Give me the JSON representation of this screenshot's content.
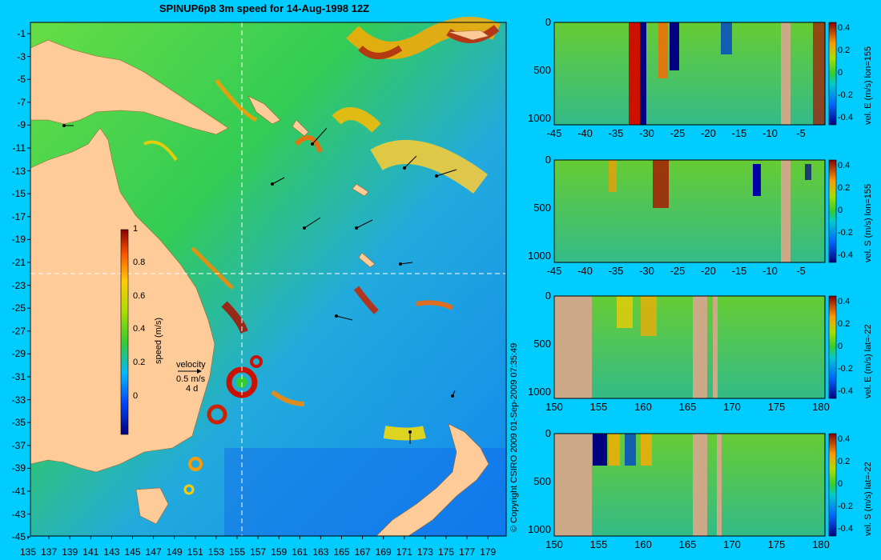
{
  "title": "SPINUP6p8 3m speed for 14-Aug-1998 12Z",
  "copyright": "© Copyright CSIRO 2009   01-Sep-2009 07:35:49",
  "map": {
    "lon_ticks": [
      "135",
      "137",
      "139",
      "141",
      "143",
      "145",
      "147",
      "149",
      "151",
      "153",
      "155",
      "157",
      "159",
      "161",
      "163",
      "165",
      "167",
      "169",
      "171",
      "173",
      "175",
      "177",
      "179"
    ],
    "lat_ticks": [
      "-1",
      "-3",
      "-5",
      "-7",
      "-9",
      "-11",
      "-13",
      "-15",
      "-17",
      "-19",
      "-21",
      "-23",
      "-25",
      "-27",
      "-29",
      "-31",
      "-33",
      "-35",
      "-37",
      "-39",
      "-41",
      "-43",
      "-45"
    ],
    "colorbar": {
      "label": "speed (m/s)",
      "ticks": [
        "1",
        "0.8",
        "0.6",
        "0.4",
        "0.2",
        "0"
      ]
    },
    "velocity_key": {
      "line1": "velocity",
      "line2": "0.5 m/s",
      "line3": "4 d"
    },
    "colors": {
      "land": "#ffcc99",
      "sea_low": "#0066ff",
      "sea_mid": "#33cc33",
      "sea_high": "#ffcc00",
      "peak": "#990000"
    }
  },
  "panels": [
    {
      "label": "vel. E (m/s) lon=155",
      "x_ticks": [
        "-45",
        "-40",
        "-35",
        "-30",
        "-25",
        "-20",
        "-15",
        "-10",
        "-5"
      ],
      "y_ticks": [
        "0",
        "500",
        "1000"
      ],
      "cb_ticks": [
        "0.4",
        "0.2",
        "0",
        "-0.2",
        "-0.4"
      ]
    },
    {
      "label": "vel. S (m/s) lon=155",
      "x_ticks": [
        "-45",
        "-40",
        "-35",
        "-30",
        "-25",
        "-20",
        "-15",
        "-10",
        "-5"
      ],
      "y_ticks": [
        "0",
        "500",
        "1000"
      ],
      "cb_ticks": [
        "0.4",
        "0.2",
        "0",
        "-0.2",
        "-0.4"
      ]
    },
    {
      "label": "vel. E (m/s) lat=-22",
      "x_ticks": [
        "150",
        "155",
        "160",
        "165",
        "170",
        "175",
        "180"
      ],
      "y_ticks": [
        "0",
        "500",
        "1000"
      ],
      "cb_ticks": [
        "0.4",
        "0.2",
        "0",
        "-0.2",
        "-0.4"
      ]
    },
    {
      "label": "vel. S (m/s) lat=-22",
      "x_ticks": [
        "150",
        "155",
        "160",
        "165",
        "170",
        "175",
        "180"
      ],
      "y_ticks": [
        "0",
        "500",
        "1000"
      ],
      "cb_ticks": [
        "0.4",
        "0.2",
        "0",
        "-0.2",
        "-0.4"
      ]
    }
  ]
}
